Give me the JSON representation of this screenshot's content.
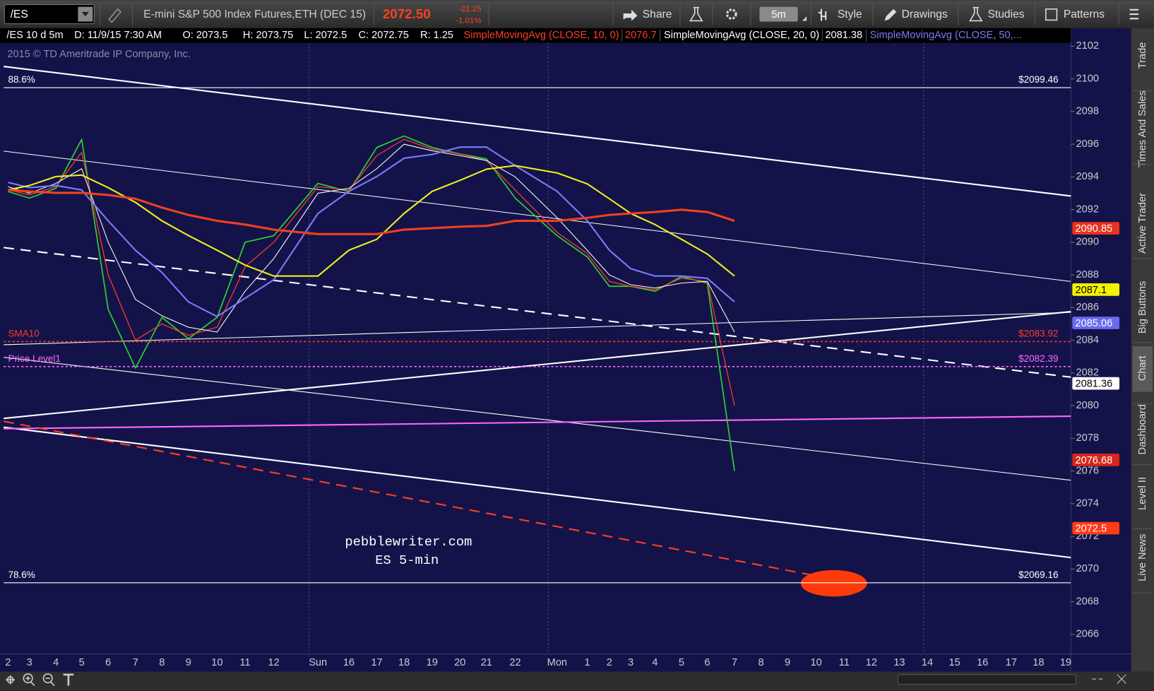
{
  "toolbar": {
    "symbol": "/ES",
    "description": "E-mini S&P 500 Index Futures,ETH (DEC 15)",
    "last": "2072.50",
    "change": "-21.25",
    "change_pct": "-1.01%",
    "share": "Share",
    "interval": "5m",
    "style": "Style",
    "drawings": "Drawings",
    "studies": "Studies",
    "patterns": "Patterns"
  },
  "header": {
    "items": [
      "/ES 10 d 5m",
      "D: 11/9/15 7:30 AM",
      "O: 2073.5",
      "H: 2073.75",
      "L: 2072.5",
      "C: 2072.75",
      "R: 1.25"
    ]
  },
  "copyright": "2015 © TD Ameritrade IP Company, Inc.",
  "annotations": [
    "pebblewriter.com",
    "ES 5-min"
  ],
  "side_tabs": [
    "Trade",
    "Times And Sales",
    "Active Trader",
    "Big Buttons",
    "Chart",
    "Dashboard",
    "Level II",
    "Live News"
  ],
  "chart_data": {
    "type": "line",
    "categories": [
      "2",
      "3",
      "4",
      "5",
      "6",
      "7",
      "8",
      "9",
      "10",
      "11",
      "12",
      "Sun",
      "16",
      "17",
      "18",
      "19",
      "20",
      "21",
      "22",
      "Mon",
      "1",
      "2",
      "3",
      "4",
      "5",
      "6",
      "7",
      "8",
      "9",
      "10",
      "11",
      "12",
      "13",
      "14",
      "15",
      "16",
      "17",
      "18",
      "19"
    ],
    "series": [
      {
        "color": "#2fd12f",
        "width": 1.6,
        "values": [
          2093.1,
          2092.7,
          2093.3,
          2096.3,
          2085.9,
          2082.3,
          2085.4,
          2084.1,
          2085.4,
          2090.0,
          2090.4,
          2093.6,
          2093.1,
          2095.8,
          2096.5,
          2095.8,
          2095.4,
          2095.1,
          2092.7,
          2090.4,
          2089.1,
          2087.3,
          2087.3,
          2087.0,
          2087.9,
          2087.5,
          2076.0,
          null,
          null,
          null,
          null,
          null,
          null,
          null,
          null,
          null,
          null,
          null,
          null
        ]
      },
      {
        "name": "SimpleMovingAvg (CLOSE, 10, 0)",
        "last": 2076.7,
        "color": "#ff3c28",
        "width": 1.2,
        "values": [
          2093.2,
          2092.9,
          2093.4,
          2095.5,
          2088.0,
          2084.0,
          2085.0,
          2084.3,
          2084.8,
          2088.5,
          2090.0,
          2093.4,
          2093.2,
          2095.3,
          2096.3,
          2095.7,
          2095.4,
          2095.0,
          2093.2,
          2090.6,
          2089.3,
          2087.6,
          2087.3,
          2087.1,
          2087.8,
          2087.6,
          2080.0,
          null,
          null,
          null,
          null,
          null,
          null,
          null,
          null,
          null,
          null,
          null,
          null
        ]
      },
      {
        "name": "SimpleMovingAvg (CLOSE, 20, 0)",
        "last": 2081.38,
        "color": "#ffffff",
        "width": 1,
        "values": [
          2093.4,
          2093.0,
          2093.6,
          2094.5,
          2090.0,
          2086.5,
          2085.5,
          2084.8,
          2084.5,
          2087.0,
          2089.0,
          2093.0,
          2093.3,
          2094.5,
          2096.0,
          2095.6,
          2095.3,
          2095.0,
          2094.0,
          2091.5,
          2089.5,
          2088.0,
          2087.4,
          2087.2,
          2087.5,
          2087.6,
          2084.5,
          null,
          null,
          null,
          null,
          null,
          null,
          null,
          null,
          null,
          null,
          null,
          null
        ]
      },
      {
        "name": "SimpleMovingAvg (CLOSE, 50,...",
        "color": "#7b7bff",
        "width": 2,
        "values": [
          2093.66,
          2093.34,
          2093.47,
          2093.2,
          2091.31,
          2089.51,
          2088.15,
          2086.35,
          2085.45,
          2086.57,
          2087.7,
          2091.76,
          2093.11,
          2094.02,
          2095.14,
          2095.37,
          2095.82,
          2095.82,
          2094.69,
          2093.11,
          2091.31,
          2089.51,
          2088.38,
          2087.93,
          2087.93,
          2087.79,
          2086.35,
          null,
          null,
          null,
          null,
          null,
          null,
          null,
          null,
          null,
          null,
          null,
          null
        ]
      },
      {
        "color": "#f2ef1e",
        "width": 2,
        "values": [
          2093.2,
          2093.47,
          2094.02,
          2094.11,
          2093.34,
          2092.44,
          2091.31,
          2090.41,
          2089.51,
          2088.6,
          2087.93,
          2087.93,
          2089.51,
          2090.18,
          2091.76,
          2093.11,
          2093.79,
          2094.47,
          2094.69,
          2094.24,
          2093.57,
          2092.66,
          2091.76,
          2091.08,
          2090.18,
          2089.28,
          2087.93,
          null,
          null,
          null,
          null,
          null,
          null,
          null,
          null,
          null,
          null,
          null,
          null
        ]
      },
      {
        "color": "#f0401e",
        "width": 3,
        "values": [
          2093.2,
          2093.11,
          2093.02,
          2093.02,
          2092.89,
          2092.66,
          2092.12,
          2091.67,
          2091.31,
          2091.08,
          2090.77,
          2090.5,
          2090.5,
          2090.5,
          2090.77,
          2090.86,
          2090.95,
          2091.0,
          2091.31,
          2091.31,
          2091.49,
          2091.67,
          2091.76,
          2091.85,
          2091.99,
          2091.85,
          2091.31,
          null,
          null,
          null,
          null,
          null,
          null,
          null,
          null,
          null,
          null,
          null,
          null
        ]
      }
    ],
    "ylim": [
      2064.8,
      2103.1
    ],
    "yticks": [
      2066,
      2068,
      2070,
      2072,
      2074,
      2076,
      2078,
      2080,
      2082,
      2084,
      2086,
      2088,
      2090,
      2092,
      2094,
      2096,
      2098,
      2100,
      2102
    ],
    "grid": false,
    "levels": [
      {
        "value": 2099.46,
        "name": "88.6%",
        "label": "$2099.46",
        "color": "#ffffff",
        "style": "solid"
      },
      {
        "value": 2083.92,
        "name": "SMA10",
        "label": "$2083.92",
        "color": "#ff3c28",
        "style": "dashed"
      },
      {
        "value": 2082.39,
        "name": "Price Level1",
        "label": "$2082.39",
        "color": "#ff66ff",
        "style": "dashed"
      },
      {
        "value": 2069.16,
        "name": "78.6%",
        "label": "$2069.16",
        "color": "#ffffff",
        "style": "solid"
      }
    ],
    "price_tags": [
      {
        "value": 2090.85,
        "color": "#e8321e",
        "text_color": "#ffffff"
      },
      {
        "value": 2087.1,
        "color": "#f3f300",
        "text_color": "#000000"
      },
      {
        "value": 2085.06,
        "color": "#6b6bf0",
        "text_color": "#ffffff"
      },
      {
        "value": 2081.36,
        "color": "#ffffff",
        "text_color": "#000000"
      },
      {
        "value": 2076.68,
        "color": "#d8261c",
        "text_color": "#ffffff"
      },
      {
        "value": 2072.5,
        "color": "#ff3a1a",
        "text_color": "#ffffff"
      }
    ]
  }
}
